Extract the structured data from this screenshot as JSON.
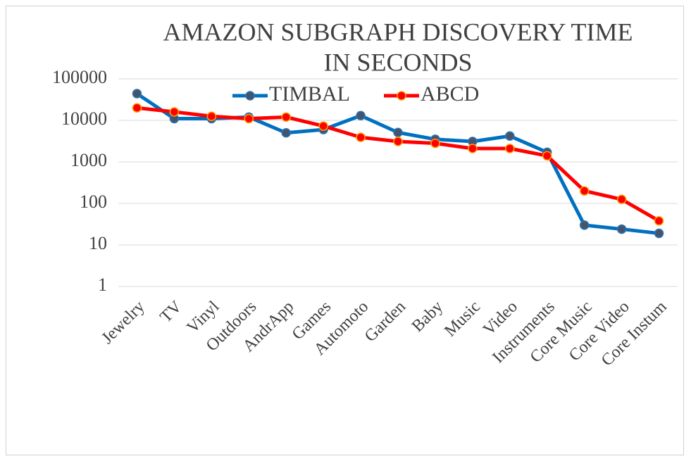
{
  "chart_data": {
    "type": "line",
    "title": [
      "AMAZON SUBGRAPH DISCOVERY TIME",
      "IN SECONDS"
    ],
    "categories": [
      "Jewelry",
      "TV",
      "Vinyl",
      "Outdoors",
      "AndrApp",
      "Games",
      "Automoto",
      "Garden",
      "Baby",
      "Music",
      "Video",
      "Instruments",
      "Core Music",
      "Core Video",
      "Core Instum"
    ],
    "series": [
      {
        "name": "TIMBAL",
        "color": "#0070c0",
        "marker_color": "#44546a",
        "values": [
          44000,
          11000,
          11000,
          12000,
          5000,
          6000,
          13000,
          5100,
          3500,
          3100,
          4200,
          1700,
          30,
          24,
          19
        ]
      },
      {
        "name": "ABCD",
        "color": "#ff0000",
        "marker_color": "#ff0000",
        "values": [
          20000,
          16000,
          12500,
          11000,
          12000,
          7300,
          3900,
          3100,
          2800,
          2100,
          2100,
          1400,
          200,
          125,
          38
        ]
      }
    ],
    "log_scale": true,
    "ylim": [
      1,
      100000
    ],
    "yticks": [
      1,
      10,
      100,
      1000,
      10000,
      100000
    ],
    "grid": true,
    "legend": "top"
  }
}
